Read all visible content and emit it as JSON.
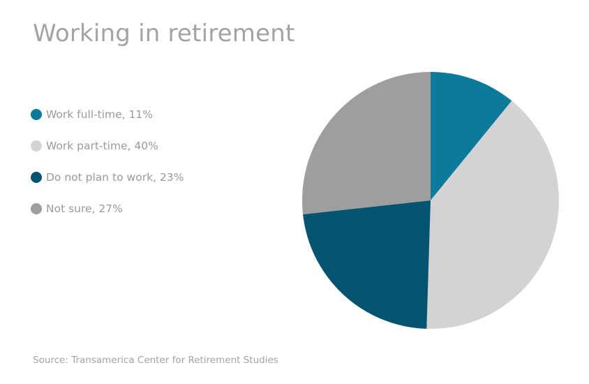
{
  "chart_data": {
    "type": "pie",
    "title": "Working in retirement",
    "source": "Source: Transamerica Center for Retirement Studies",
    "legend_position": "left",
    "slices": [
      {
        "label": "Work full-time, 11%",
        "category": "Work full-time",
        "value": 11,
        "color": "#0d7a9a"
      },
      {
        "label": "Work part-time, 40%",
        "category": "Work part-time",
        "value": 40,
        "color": "#d3d3d5"
      },
      {
        "label": "Do not plan to work, 23%",
        "category": "Do not plan to work",
        "value": 23,
        "color": "#04546f"
      },
      {
        "label": "Not sure, 27%",
        "category": "Not sure",
        "value": 27,
        "color": "#9e9e9e"
      }
    ]
  }
}
